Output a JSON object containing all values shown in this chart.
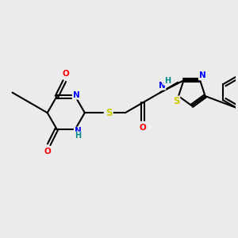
{
  "bg_color": "#ebebeb",
  "bond_color": "#000000",
  "atom_colors": {
    "O": "#ff0000",
    "N": "#0000ff",
    "S": "#cccc00",
    "H": "#008b8b",
    "C": "#000000"
  },
  "figsize": [
    3.0,
    3.0
  ],
  "dpi": 100
}
